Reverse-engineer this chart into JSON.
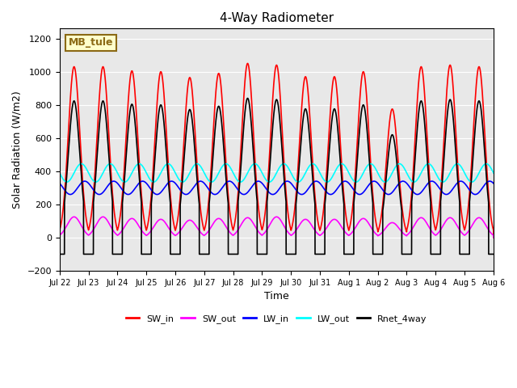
{
  "title": "4-Way Radiometer",
  "xlabel": "Time",
  "ylabel": "Solar Radiation (W/m2)",
  "ylim": [
    -200,
    1260
  ],
  "yticks": [
    -200,
    0,
    200,
    400,
    600,
    800,
    1000,
    1200
  ],
  "annotation_text": "MB_tule",
  "annotation_color": "#8B6914",
  "annotation_bg": "#FFFFCC",
  "bg_color": "#E8E8E8",
  "series": {
    "SW_in": {
      "color": "#FF0000",
      "lw": 1.2
    },
    "SW_out": {
      "color": "#FF00FF",
      "lw": 1.2
    },
    "LW_in": {
      "color": "#0000FF",
      "lw": 1.2
    },
    "LW_out": {
      "color": "#00FFFF",
      "lw": 1.2
    },
    "Rnet_4way": {
      "color": "#000000",
      "lw": 1.2
    }
  },
  "xtick_labels": [
    "Jul 22",
    "Jul 23",
    "Jul 24",
    "Jul 25",
    "Jul 26",
    "Jul 27",
    "Jul 28",
    "Jul 29",
    "Jul 30",
    "Jul 31",
    "Aug 1",
    "Aug 2",
    "Aug 3",
    "Aug 4",
    "Aug 5",
    "Aug 6"
  ],
  "n_days": 16,
  "pts_per_day": 288,
  "SW_in_peaks": [
    1030,
    1030,
    1005,
    1000,
    965,
    990,
    1050,
    1040,
    970,
    970,
    1000,
    775,
    1030,
    1040,
    1030,
    0
  ],
  "SW_out_peaks": [
    125,
    125,
    115,
    110,
    105,
    115,
    120,
    125,
    110,
    110,
    115,
    90,
    120,
    120,
    120,
    0
  ],
  "LW_in_base": 300,
  "LW_in_amplitude": 40,
  "LW_out_base": 390,
  "LW_out_amplitude": 55,
  "Rnet_night": -100
}
